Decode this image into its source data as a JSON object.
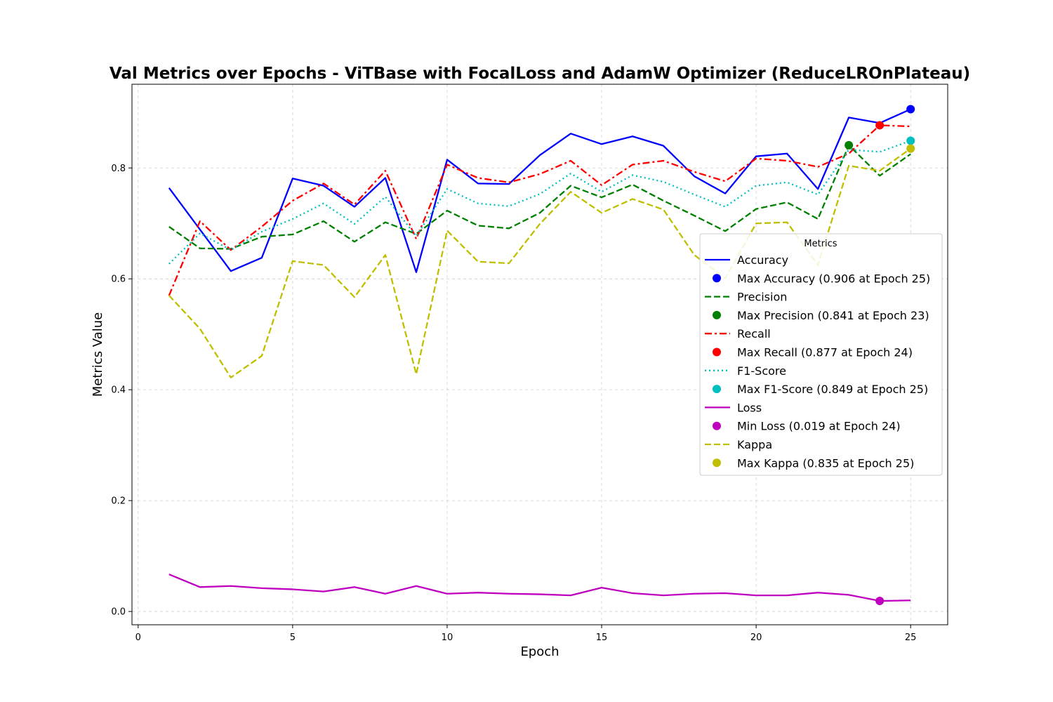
{
  "chart_data": {
    "type": "line",
    "title": "Val Metrics over Epochs - ViTBase with FocalLoss and AdamW Optimizer (ReduceLROnPlateau)",
    "xlabel": "Epoch",
    "ylabel": "Metrics Value",
    "xlim": [
      -0.2,
      26.2
    ],
    "ylim": [
      -0.024,
      0.951
    ],
    "xticks": [
      0,
      5,
      10,
      15,
      20,
      25
    ],
    "xtick_labels": [
      "0",
      "5",
      "10",
      "15",
      "20",
      "25"
    ],
    "yticks": [
      0.0,
      0.2,
      0.4,
      0.6,
      0.8
    ],
    "ytick_labels": [
      "0.0",
      "0.2",
      "0.4",
      "0.6",
      "0.8"
    ],
    "grid": true,
    "legend": {
      "title": "Metrics",
      "placement": "center-right"
    },
    "x": [
      1,
      2,
      3,
      4,
      5,
      6,
      7,
      8,
      9,
      10,
      11,
      12,
      13,
      14,
      15,
      16,
      17,
      18,
      19,
      20,
      21,
      22,
      23,
      24,
      25
    ],
    "series": [
      {
        "name": "Accuracy",
        "color": "#0000ff",
        "dash": "solid",
        "values": [
          0.764,
          0.689,
          0.614,
          0.638,
          0.781,
          0.768,
          0.73,
          0.782,
          0.612,
          0.815,
          0.772,
          0.771,
          0.823,
          0.862,
          0.843,
          0.857,
          0.84,
          0.785,
          0.754,
          0.821,
          0.826,
          0.762,
          0.891,
          0.881,
          0.906
        ],
        "marker": {
          "name": "Max Accuracy (0.906 at Epoch 25)",
          "x": 25,
          "y": 0.906
        }
      },
      {
        "name": "Precision",
        "color": "#008000",
        "dash": "dashed",
        "values": [
          0.694,
          0.655,
          0.654,
          0.676,
          0.68,
          0.704,
          0.667,
          0.702,
          0.681,
          0.723,
          0.696,
          0.691,
          0.719,
          0.768,
          0.747,
          0.77,
          0.741,
          0.714,
          0.686,
          0.726,
          0.738,
          0.708,
          0.841,
          0.786,
          0.825
        ],
        "marker": {
          "name": "Max Precision (0.841 at Epoch 23)",
          "x": 23,
          "y": 0.841
        }
      },
      {
        "name": "Recall",
        "color": "#ff0000",
        "dash": "dashdot",
        "values": [
          0.57,
          0.704,
          0.652,
          0.694,
          0.741,
          0.772,
          0.734,
          0.795,
          0.672,
          0.806,
          0.782,
          0.774,
          0.789,
          0.813,
          0.769,
          0.806,
          0.813,
          0.793,
          0.776,
          0.817,
          0.813,
          0.802,
          0.826,
          0.877,
          0.875
        ],
        "marker": {
          "name": "Max Recall (0.877 at Epoch 24)",
          "x": 24,
          "y": 0.877
        }
      },
      {
        "name": "F1-Score",
        "color": "#00bfbf",
        "dash": "dotted",
        "values": [
          0.627,
          0.682,
          0.652,
          0.685,
          0.708,
          0.736,
          0.699,
          0.748,
          0.677,
          0.762,
          0.736,
          0.731,
          0.753,
          0.79,
          0.757,
          0.787,
          0.775,
          0.752,
          0.73,
          0.768,
          0.774,
          0.752,
          0.833,
          0.829,
          0.849
        ],
        "marker": {
          "name": "Max F1-Score (0.849 at Epoch 25)",
          "x": 25,
          "y": 0.849
        }
      },
      {
        "name": "Loss",
        "color": "#bf00bf",
        "dash": "solid",
        "values": [
          0.067,
          0.044,
          0.046,
          0.042,
          0.04,
          0.036,
          0.044,
          0.032,
          0.046,
          0.032,
          0.034,
          0.032,
          0.031,
          0.029,
          0.043,
          0.033,
          0.029,
          0.032,
          0.033,
          0.029,
          0.029,
          0.034,
          0.03,
          0.019,
          0.02
        ],
        "marker": {
          "name": "Min Loss (0.019 at Epoch 24)",
          "x": 24,
          "y": 0.019
        }
      },
      {
        "name": "Kappa",
        "color": "#bfbf00",
        "dash": "dashed",
        "values": [
          0.57,
          0.51,
          0.422,
          0.461,
          0.632,
          0.625,
          0.567,
          0.643,
          0.428,
          0.687,
          0.631,
          0.628,
          0.699,
          0.757,
          0.719,
          0.744,
          0.725,
          0.643,
          0.601,
          0.7,
          0.702,
          0.625,
          0.804,
          0.795,
          0.835
        ],
        "marker": {
          "name": "Max Kappa (0.835 at Epoch 25)",
          "x": 25,
          "y": 0.835
        }
      }
    ]
  }
}
